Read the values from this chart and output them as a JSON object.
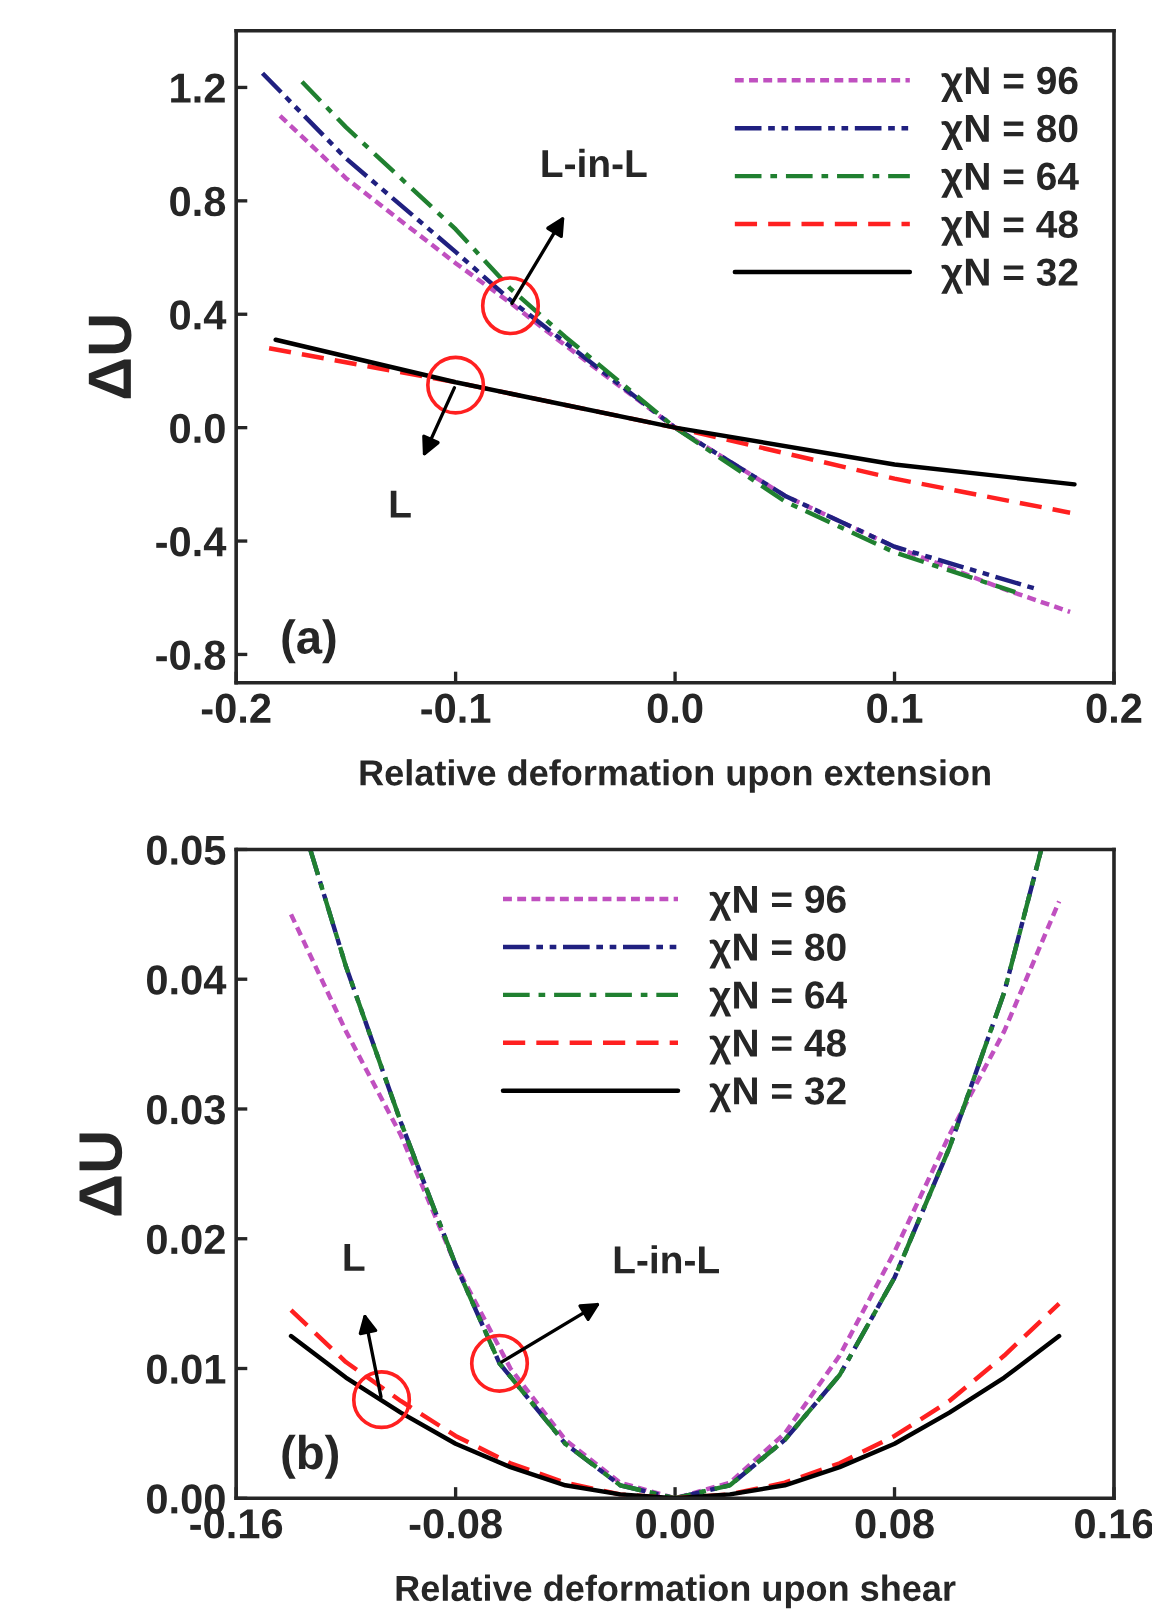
{
  "chart_data": [
    {
      "type": "line",
      "xlabel": "Relative deformation upon extension",
      "ylabel": "ΔU",
      "xlim": [
        -0.2,
        0.2
      ],
      "ylim": [
        -0.9,
        1.4
      ],
      "xticks": [
        -0.2,
        -0.1,
        {
          "value": 0,
          "label": "0.0"
        },
        0.1,
        0.2
      ],
      "yticks": [
        -0.8,
        -0.4,
        {
          "value": 0,
          "label": "0.0"
        },
        0.4,
        0.8,
        1.2
      ],
      "legend": "top right",
      "grid": false,
      "annotations": [
        {
          "text": "L-in-L",
          "x": -0.075,
          "y": 0.43
        },
        {
          "text": "L",
          "x": -0.1,
          "y": 0.15
        },
        "(a)"
      ],
      "series": [
        {
          "name": "χN = 96",
          "color": "#c050c0",
          "line_style": "dotted",
          "x": [
            -0.18,
            -0.15,
            -0.1,
            -0.075,
            -0.05,
            0,
            0.05,
            0.1,
            0.15,
            0.18
          ],
          "values": [
            1.1,
            0.88,
            0.58,
            0.44,
            0.29,
            0,
            -0.24,
            -0.42,
            -0.57,
            -0.65
          ]
        },
        {
          "name": "χN = 80",
          "color": "#202080",
          "line_style": "dashdotdot",
          "x": [
            -0.188,
            -0.15,
            -0.1,
            -0.075,
            -0.05,
            0,
            0.05,
            0.1,
            0.165
          ],
          "values": [
            1.25,
            0.95,
            0.62,
            0.45,
            0.3,
            0,
            -0.24,
            -0.42,
            -0.57
          ]
        },
        {
          "name": "χN = 64",
          "color": "#208030",
          "line_style": "dashdot",
          "x": [
            -0.17,
            -0.15,
            -0.1,
            -0.075,
            -0.05,
            0,
            0.05,
            0.1,
            0.155
          ],
          "values": [
            1.22,
            1.06,
            0.7,
            0.49,
            0.32,
            0,
            -0.26,
            -0.44,
            -0.58
          ]
        },
        {
          "name": "χN = 48",
          "color": "#ff2020",
          "line_style": "dashed",
          "x": [
            -0.185,
            -0.1,
            -0.05,
            0,
            0.05,
            0.1,
            0.18
          ],
          "values": [
            0.28,
            0.16,
            0.08,
            0,
            -0.09,
            -0.18,
            -0.3
          ]
        },
        {
          "name": "χN = 32",
          "color": "#000000",
          "line_style": "solid",
          "x": [
            -0.182,
            -0.1,
            0,
            0.1,
            0.182
          ],
          "values": [
            0.31,
            0.16,
            0,
            -0.13,
            -0.2
          ]
        }
      ]
    },
    {
      "type": "line",
      "xlabel": "Relative deformation upon shear",
      "ylabel": "ΔU",
      "xlim": [
        -0.16,
        0.16
      ],
      "ylim": [
        0,
        0.05
      ],
      "xticks": [
        -0.16,
        -0.08,
        {
          "value": 0,
          "label": "0.00"
        },
        0.08,
        0.16
      ],
      "yticks": [
        {
          "value": 0,
          "label": "0.00"
        },
        0.01,
        0.02,
        0.03,
        0.04,
        0.05
      ],
      "legend": "top",
      "grid": false,
      "annotations": [
        {
          "text": "L",
          "x": -0.107,
          "y": 0.0076
        },
        {
          "text": "L-in-L",
          "x": -0.064,
          "y": 0.0104
        },
        "(b)"
      ],
      "series": [
        {
          "name": "χN = 96",
          "color": "#c050c0",
          "line_style": "dotted",
          "x": [
            -0.14,
            -0.12,
            -0.1,
            -0.08,
            -0.06,
            -0.04,
            -0.02,
            0,
            0.02,
            0.04,
            0.06,
            0.08,
            0.1,
            0.12,
            0.14
          ],
          "values": [
            0.045,
            0.036,
            0.028,
            0.018,
            0.01,
            0.0045,
            0.0012,
            0,
            0.0012,
            0.005,
            0.011,
            0.019,
            0.028,
            0.036,
            0.046
          ]
        },
        {
          "name": "χN = 80",
          "color": "#202080",
          "line_style": "dashdotdot",
          "x": [
            -0.133,
            -0.12,
            -0.1,
            -0.08,
            -0.064,
            -0.04,
            -0.02,
            0,
            0.02,
            0.04,
            0.06,
            0.08,
            0.1,
            0.12,
            0.1335
          ],
          "values": [
            0.05,
            0.041,
            0.029,
            0.018,
            0.0104,
            0.0042,
            0.001,
            0,
            0.001,
            0.0045,
            0.0095,
            0.017,
            0.027,
            0.039,
            0.05
          ]
        },
        {
          "name": "χN = 64",
          "color": "#208030",
          "line_style": "dashdot",
          "x": [
            -0.133,
            -0.12,
            -0.1,
            -0.08,
            -0.064,
            -0.04,
            -0.02,
            0,
            0.02,
            0.04,
            0.06,
            0.08,
            0.1,
            0.12,
            0.1335
          ],
          "values": [
            0.05,
            0.041,
            0.029,
            0.018,
            0.0104,
            0.0042,
            0.001,
            0,
            0.001,
            0.0045,
            0.0095,
            0.017,
            0.027,
            0.039,
            0.05
          ]
        },
        {
          "name": "χN = 48",
          "color": "#ff2020",
          "line_style": "dashed",
          "x": [
            -0.14,
            -0.12,
            -0.1,
            -0.08,
            -0.06,
            -0.04,
            -0.02,
            0,
            0.02,
            0.04,
            0.06,
            0.08,
            0.1,
            0.12,
            0.14
          ],
          "values": [
            0.0145,
            0.0105,
            0.0075,
            0.0048,
            0.0027,
            0.0012,
            0.0003,
            0,
            0.0003,
            0.0012,
            0.0027,
            0.0048,
            0.0075,
            0.011,
            0.015
          ]
        },
        {
          "name": "χN = 32",
          "color": "#000000",
          "line_style": "solid",
          "x": [
            -0.14,
            -0.12,
            -0.1,
            -0.08,
            -0.06,
            -0.04,
            -0.02,
            0,
            0.02,
            0.04,
            0.06,
            0.08,
            0.1,
            0.12,
            0.14
          ],
          "values": [
            0.0125,
            0.0093,
            0.0066,
            0.0042,
            0.0024,
            0.001,
            0.0003,
            0,
            0.0003,
            0.001,
            0.0024,
            0.0042,
            0.0066,
            0.0093,
            0.0125
          ]
        }
      ]
    }
  ]
}
